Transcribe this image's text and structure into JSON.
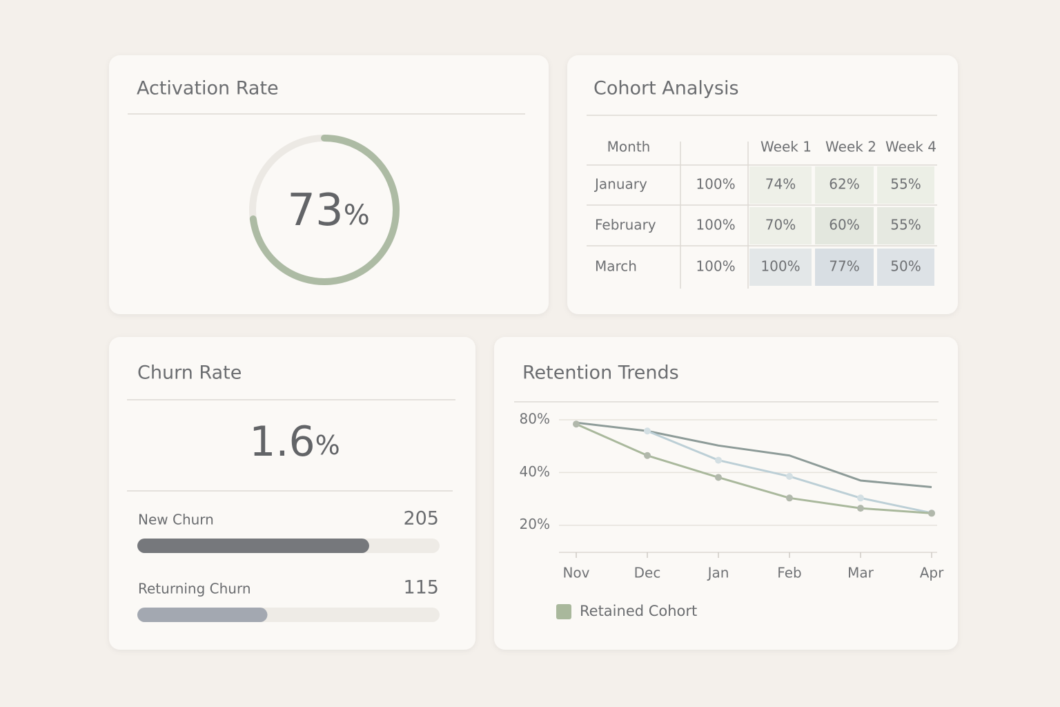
{
  "activation": {
    "title": "Activation Rate",
    "value": 73,
    "unit": "%"
  },
  "cohort": {
    "title": "Cohort Analysis",
    "columns": [
      "Month",
      null,
      "Week 1",
      "Week 2",
      "Week 4"
    ],
    "rows": [
      [
        "January",
        "100%",
        "74%",
        "62%",
        "55%"
      ],
      [
        "February",
        "100%",
        "70%",
        "60%",
        "55%"
      ],
      [
        "March",
        "100%",
        "100%",
        "77%",
        "50%"
      ]
    ]
  },
  "churn": {
    "title": "Churn Rate",
    "value": 1.6,
    "unit": "%",
    "items": [
      {
        "label": "New Churn",
        "value": 205,
        "color": "#76787c"
      },
      {
        "label": "Returning Churn",
        "value": 115,
        "color": "#a3a8b1"
      }
    ]
  },
  "chart_data": {
    "type": "line",
    "title": "Retention Trends",
    "categories": [
      "Nov",
      "Dec",
      "Jan",
      "Feb",
      "Mar",
      "Apr"
    ],
    "log_scale": true,
    "grid": true,
    "ylim": [
      14,
      90
    ],
    "yticks": [
      {
        "value": 80,
        "label": "80%"
      },
      {
        "value": 40,
        "label": "40%"
      },
      {
        "value": 20,
        "label": "20%"
      }
    ],
    "series": [
      {
        "name": "Retained Cohort",
        "color": "#a9b89c",
        "markers": true,
        "values": [
          75.6,
          50,
          37.5,
          28.6,
          25,
          23.4
        ]
      },
      {
        "color": "#8d9b98",
        "markers": false,
        "values": [
          77,
          69,
          57,
          50,
          36,
          33
        ]
      },
      {
        "color": "#bccfd6",
        "markers": true,
        "values": [
          null,
          69,
          47,
          38,
          28.6,
          23.5
        ]
      }
    ]
  }
}
